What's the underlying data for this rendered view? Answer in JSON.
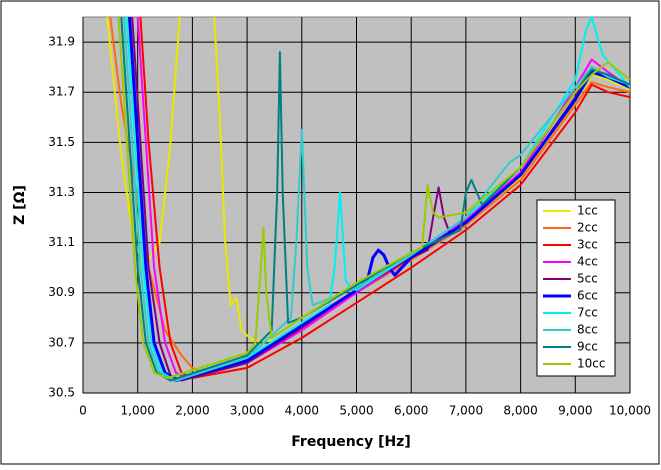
{
  "chart_data": {
    "type": "line",
    "x_label": "Frequency [Hz]",
    "y_label": "Z [Ω]",
    "xlim": [
      0,
      10000
    ],
    "xticks": [
      0,
      {
        "value": 1000,
        "label": "1,000"
      },
      {
        "value": 2000,
        "label": "2,000"
      },
      {
        "value": 3000,
        "label": "3,000"
      },
      {
        "value": 4000,
        "label": "4,000"
      },
      {
        "value": 5000,
        "label": "5,000"
      },
      {
        "value": 6000,
        "label": "6,000"
      },
      {
        "value": 7000,
        "label": "7,000"
      },
      {
        "value": 8000,
        "label": "8,000"
      },
      {
        "value": 9000,
        "label": "9,000"
      },
      {
        "value": 10000,
        "label": "10,000"
      }
    ],
    "ylim": [
      30.5,
      32.0
    ],
    "yticks": [
      30.5,
      30.7,
      30.9,
      31.1,
      31.3,
      31.5,
      31.7,
      31.9
    ],
    "grid": true,
    "legend": "right",
    "series": [
      {
        "name": "1cc",
        "color": "#e8e800",
        "x": [
          440,
          700,
          900,
          1100,
          1400,
          1600,
          1770,
          null,
          2400,
          2500,
          2600,
          2700,
          2800,
          2900,
          3100,
          3500,
          4000,
          5000,
          6000,
          7000,
          8000,
          9000,
          9300,
          9600,
          10000
        ],
        "values": [
          32.0,
          31.45,
          31.15,
          31.0,
          31.1,
          31.5,
          32.0,
          null,
          32.0,
          31.6,
          31.1,
          30.85,
          30.88,
          30.75,
          30.71,
          30.71,
          30.77,
          30.91,
          31.04,
          31.18,
          31.36,
          31.66,
          31.77,
          31.75,
          31.71
        ]
      },
      {
        "name": "2cc",
        "color": "#ff6a10",
        "x": [
          500,
          700,
          900,
          1200,
          1500,
          1800,
          2000,
          2200,
          3000,
          4000,
          5000,
          6000,
          7000,
          8000,
          9000,
          9300,
          9600,
          10000
        ],
        "values": [
          32.0,
          31.65,
          31.4,
          31.0,
          30.75,
          30.65,
          30.6,
          30.58,
          30.63,
          30.75,
          30.9,
          31.03,
          31.17,
          31.35,
          31.65,
          31.74,
          31.72,
          31.7
        ]
      },
      {
        "name": "3cc",
        "color": "#ff0000",
        "x": [
          1050,
          1200,
          1400,
          1600,
          1800,
          2000,
          3000,
          4000,
          5000,
          6000,
          7000,
          8000,
          9000,
          9300,
          9600,
          10000
        ],
        "values": [
          32.0,
          31.5,
          31.0,
          30.7,
          30.58,
          30.56,
          30.6,
          30.72,
          30.86,
          31.0,
          31.15,
          31.33,
          31.62,
          31.73,
          31.7,
          31.68
        ]
      },
      {
        "name": "4cc",
        "color": "#ff00ff",
        "x": [
          1000,
          1150,
          1300,
          1500,
          1700,
          1900,
          3000,
          4000,
          5000,
          6000,
          7000,
          8000,
          8600,
          9000,
          9300,
          9600,
          10000
        ],
        "values": [
          32.0,
          31.5,
          31.0,
          30.7,
          30.58,
          30.56,
          30.62,
          30.75,
          30.9,
          31.04,
          31.19,
          31.38,
          31.58,
          31.72,
          31.83,
          31.78,
          31.72
        ]
      },
      {
        "name": "5cc",
        "color": "#800080",
        "x": [
          900,
          1050,
          1200,
          1400,
          1600,
          1800,
          3000,
          4000,
          5000,
          6000,
          6300,
          6400,
          6500,
          6600,
          6700,
          7000,
          8000,
          9000,
          9300,
          9600,
          10000
        ],
        "values": [
          32.0,
          31.5,
          31.0,
          30.7,
          30.57,
          30.55,
          30.62,
          30.76,
          30.91,
          31.04,
          31.07,
          31.2,
          31.32,
          31.2,
          31.14,
          31.18,
          31.37,
          31.68,
          31.8,
          31.76,
          31.72
        ]
      },
      {
        "name": "6cc",
        "color": "#0000ff",
        "x": [
          850,
          1000,
          1150,
          1300,
          1500,
          1700,
          3000,
          4000,
          5000,
          5200,
          5300,
          5400,
          5500,
          5600,
          5700,
          6000,
          7000,
          8000,
          9000,
          9300,
          9600,
          10000
        ],
        "values": [
          32.0,
          31.5,
          31.0,
          30.7,
          30.58,
          30.55,
          30.63,
          30.77,
          30.91,
          30.95,
          31.04,
          31.07,
          31.05,
          31.0,
          30.97,
          31.04,
          31.18,
          31.37,
          31.67,
          31.78,
          31.76,
          31.72
        ]
      },
      {
        "name": "7cc",
        "color": "#00f0f0",
        "x": [
          800,
          950,
          1100,
          1250,
          1450,
          1700,
          3000,
          4000,
          4500,
          4600,
          4700,
          4800,
          4900,
          5000,
          6000,
          7000,
          8000,
          9000,
          9200,
          9300,
          9500,
          10000
        ],
        "values": [
          32.0,
          31.5,
          31.0,
          30.7,
          30.58,
          30.55,
          30.64,
          30.78,
          30.85,
          31.0,
          31.3,
          30.95,
          30.92,
          30.91,
          31.05,
          31.2,
          31.4,
          31.75,
          31.95,
          32.0,
          31.85,
          31.72
        ]
      },
      {
        "name": "8cc",
        "color": "#33cccc",
        "x": [
          750,
          900,
          1050,
          1200,
          1400,
          1700,
          3000,
          3800,
          3900,
          4000,
          4100,
          4200,
          5000,
          6000,
          7000,
          7800,
          8000,
          9000,
          9300,
          9600,
          10000
        ],
        "values": [
          32.0,
          31.5,
          31.0,
          30.7,
          30.58,
          30.55,
          30.64,
          30.8,
          31.1,
          31.55,
          31.0,
          30.85,
          30.92,
          31.05,
          31.2,
          31.42,
          31.45,
          31.72,
          31.8,
          31.76,
          31.73
        ]
      },
      {
        "name": "9cc",
        "color": "#008080",
        "x": [
          700,
          850,
          1000,
          1150,
          1350,
          1600,
          3000,
          3450,
          3550,
          3600,
          3650,
          3750,
          4000,
          5000,
          6000,
          6900,
          7000,
          7100,
          7200,
          7300,
          8000,
          9000,
          9300,
          9600,
          10000
        ],
        "values": [
          32.0,
          31.5,
          31.0,
          30.7,
          30.58,
          30.55,
          30.65,
          30.75,
          31.3,
          31.86,
          31.3,
          30.78,
          30.8,
          30.93,
          31.06,
          31.15,
          31.3,
          31.35,
          31.3,
          31.25,
          31.4,
          31.7,
          31.79,
          31.77,
          31.73
        ]
      },
      {
        "name": "10cc",
        "color": "#99cc00",
        "x": [
          650,
          800,
          950,
          1100,
          1300,
          1550,
          3000,
          3150,
          3250,
          3300,
          3350,
          3450,
          4000,
          5000,
          6000,
          6200,
          6300,
          6400,
          6500,
          7000,
          8000,
          9000,
          9300,
          9600,
          10000
        ],
        "values": [
          32.0,
          31.5,
          31.0,
          30.7,
          30.58,
          30.56,
          30.66,
          30.7,
          31.0,
          31.16,
          30.9,
          30.72,
          30.8,
          30.94,
          31.06,
          31.08,
          31.33,
          31.22,
          31.2,
          31.22,
          31.4,
          31.7,
          31.77,
          31.82,
          31.75
        ]
      }
    ]
  }
}
